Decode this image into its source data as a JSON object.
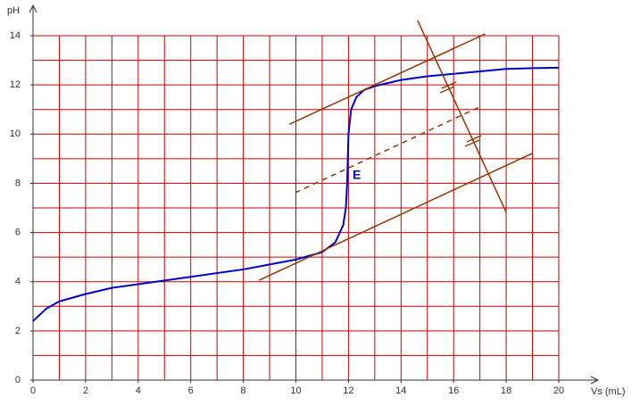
{
  "chart_data": {
    "type": "line",
    "xlabel": "Vs  (mL)",
    "ylabel": "pH",
    "annotation": "E",
    "xlim": [
      0,
      20
    ],
    "ylim": [
      0,
      14
    ],
    "xticks": [
      0,
      2,
      4,
      6,
      8,
      10,
      12,
      14,
      16,
      18,
      20
    ],
    "yticks": [
      0,
      2,
      4,
      6,
      8,
      10,
      12,
      14
    ],
    "grid": true,
    "grid_color": "#cc0000",
    "xgrid": [
      0,
      1,
      2,
      3,
      4,
      5,
      6,
      7,
      8,
      9,
      10,
      11,
      12,
      13,
      14,
      15,
      16,
      17,
      18,
      19,
      20
    ],
    "ygrid": [
      0,
      1,
      2,
      3,
      4,
      5,
      6,
      7,
      8,
      9,
      10,
      11,
      12,
      13,
      14
    ],
    "series": [
      {
        "color": "#0000cc",
        "width": 2,
        "x": [
          0,
          0.5,
          1,
          2,
          3,
          4,
          5,
          6,
          7,
          8,
          9,
          10,
          11,
          11.5,
          11.8,
          11.9,
          11.95,
          12,
          12.1,
          12.3,
          12.6,
          13,
          14,
          15,
          16,
          17,
          18,
          19,
          20
        ],
        "values": [
          2.4,
          2.9,
          3.2,
          3.5,
          3.75,
          3.9,
          4.05,
          4.2,
          4.35,
          4.5,
          4.7,
          4.9,
          5.2,
          5.6,
          6.3,
          7,
          8,
          10,
          11,
          11.5,
          11.8,
          11.95,
          12.2,
          12.35,
          12.45,
          12.55,
          12.65,
          12.68,
          12.7
        ]
      },
      {
        "color": "#993300",
        "width": 1.5,
        "x": [
          9.75,
          17.2
        ],
        "values": [
          10.4,
          14.07
        ]
      },
      {
        "color": "#993300",
        "width": 1.5,
        "x": [
          8.6,
          18.98
        ],
        "values": [
          4.06,
          9.21
        ]
      },
      {
        "color": "#993300",
        "width": 1.5,
        "dash": true,
        "x": [
          9.98,
          16.98
        ],
        "values": [
          7.62,
          11.1
        ]
      },
      {
        "color": "#993300",
        "width": 1.5,
        "x": [
          14.63,
          18.0
        ],
        "values": [
          14.62,
          6.82
        ]
      }
    ]
  }
}
